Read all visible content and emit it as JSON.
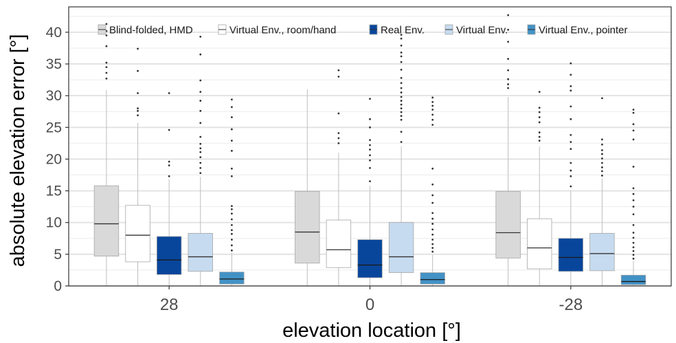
{
  "chart_data": {
    "type": "box",
    "xlabel": "elevation location [°]",
    "ylabel": "absolute elevation error [°]",
    "ylim": [
      0,
      44
    ],
    "yticks": [
      0,
      5,
      10,
      15,
      20,
      25,
      30,
      35,
      40
    ],
    "grid": true,
    "legend_position": "top",
    "categories": [
      "28",
      "0",
      "-28"
    ],
    "series": [
      {
        "name": "Blind-folded, HMD",
        "color": "#d9d9d9",
        "boxes": [
          {
            "whisker_low": 0,
            "q1": 4.7,
            "median": 9.8,
            "q3": 15.8,
            "whisker_high": 30.9,
            "outliers": [
              32.7,
              33.6,
              34.5,
              35.2,
              37.8,
              39.5,
              40.2,
              41.3
            ]
          },
          {
            "whisker_low": 0,
            "q1": 3.6,
            "median": 8.5,
            "q3": 14.9,
            "whisker_high": 31.0,
            "outliers": []
          },
          {
            "whisker_low": 0,
            "q1": 4.4,
            "median": 8.4,
            "q3": 14.9,
            "whisker_high": 29.8,
            "outliers": [
              31.2,
              31.8,
              32.6,
              34.0,
              35.8,
              38.5,
              40.4,
              42.7
            ]
          }
        ]
      },
      {
        "name": "Virtual Env., room/hand",
        "color": "#ffffff",
        "boxes": [
          {
            "whisker_low": 0,
            "q1": 3.8,
            "median": 8.0,
            "q3": 12.7,
            "whisker_high": 25.7,
            "outliers": [
              26.9,
              27.6,
              28.0,
              30.4,
              33.9,
              37.4
            ]
          },
          {
            "whisker_low": 0,
            "q1": 2.9,
            "median": 5.7,
            "q3": 10.4,
            "whisker_high": 21.0,
            "outliers": [
              22.5,
              23.3,
              24.1,
              27.2,
              33.0,
              34.0
            ]
          },
          {
            "whisker_low": 0,
            "q1": 2.7,
            "median": 6.0,
            "q3": 10.6,
            "whisker_high": 22.0,
            "outliers": [
              22.9,
              23.5,
              24.2,
              25.8,
              26.6,
              27.4,
              28.1,
              30.6
            ]
          }
        ]
      },
      {
        "name": "Real Env.",
        "color": "#08469c",
        "boxes": [
          {
            "whisker_low": 0,
            "q1": 1.8,
            "median": 4.1,
            "q3": 7.8,
            "whisker_high": 16.8,
            "outliers": [
              17.3,
              19.0,
              19.6,
              24.6,
              30.4
            ]
          },
          {
            "whisker_low": 0,
            "q1": 1.3,
            "median": 3.3,
            "q3": 7.3,
            "whisker_high": 15.8,
            "outliers": [
              16.5,
              18.6,
              19.8,
              20.6,
              21.5,
              22.2,
              23.0,
              25.0,
              26.3,
              29.5
            ]
          },
          {
            "whisker_low": 0,
            "q1": 2.3,
            "median": 4.5,
            "q3": 7.5,
            "whisker_high": 15.0,
            "outliers": [
              15.7,
              17.3,
              18.2,
              19.4,
              21.6,
              22.7,
              23.8,
              26.3,
              28.3,
              30.8,
              31.5,
              33.3,
              35.1
            ]
          }
        ]
      },
      {
        "name": "Virtual Env.",
        "color": "#c6dbef",
        "boxes": [
          {
            "whisker_low": 0,
            "q1": 2.3,
            "median": 4.6,
            "q3": 8.3,
            "whisker_high": 17.2,
            "outliers": [
              17.8,
              18.6,
              19.4,
              20.3,
              21.1,
              21.7,
              22.4,
              23.5,
              25.7,
              27.6,
              29.2,
              30.6,
              32.4,
              36.5,
              39.3
            ]
          },
          {
            "whisker_low": 0,
            "q1": 2.1,
            "median": 4.6,
            "q3": 10.0,
            "whisker_high": 22.0,
            "outliers": [
              22.7,
              24.3,
              26.2,
              26.8,
              27.4,
              28.0,
              28.6,
              29.2,
              29.8,
              30.5,
              31.2,
              32.0,
              32.8,
              34.1,
              35.3,
              36.2,
              36.8,
              37.9,
              39.0,
              39.6
            ]
          },
          {
            "whisker_low": 0,
            "q1": 2.4,
            "median": 5.1,
            "q3": 8.3,
            "whisker_high": 16.9,
            "outliers": [
              17.4,
              18.1,
              18.7,
              19.4,
              20.1,
              20.8,
              21.4,
              22.3,
              23.1,
              29.6
            ]
          }
        ]
      },
      {
        "name": "Virtual Env., pointer",
        "color": "#4292c6",
        "boxes": [
          {
            "whisker_low": 0,
            "q1": 0.3,
            "median": 1.1,
            "q3": 2.2,
            "whisker_high": 5.2,
            "outliers": [
              5.6,
              6.4,
              7.3,
              8.2,
              8.8,
              9.6,
              10.5,
              11.4,
              12.1,
              12.6,
              17.3,
              18.5,
              21.3,
              22.9,
              24.7,
              26.6,
              28.2,
              29.4
            ]
          },
          {
            "whisker_low": 0,
            "q1": 0.3,
            "median": 1.0,
            "q3": 2.1,
            "whisker_high": 4.9,
            "outliers": [
              5.4,
              6.0,
              6.6,
              7.3,
              8.1,
              8.9,
              9.8,
              10.6,
              11.5,
              13.1,
              14.3,
              16.0,
              18.5,
              25.4,
              26.2,
              27.0,
              27.8,
              28.4,
              29.0,
              29.7
            ]
          },
          {
            "whisker_low": 0,
            "q1": 0.2,
            "median": 0.7,
            "q3": 1.7,
            "whisker_high": 3.9,
            "outliers": [
              4.3,
              4.9,
              5.5,
              6.1,
              6.8,
              7.6,
              8.4,
              9.6,
              11.3,
              12.5,
              13.5,
              14.5,
              15.4,
              18.8,
              23.1,
              24.5,
              25.5,
              27.3,
              27.8
            ]
          }
        ]
      }
    ]
  }
}
